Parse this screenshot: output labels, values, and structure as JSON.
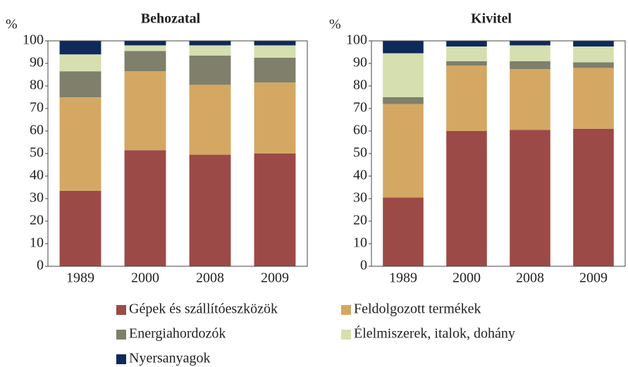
{
  "chart_data": {
    "type": "bar",
    "stacked": true,
    "ylabel": "%",
    "ylim": [
      0,
      100
    ],
    "yticks": [
      0,
      10,
      20,
      30,
      40,
      50,
      60,
      70,
      80,
      90,
      100
    ],
    "categories": [
      "1989",
      "2000",
      "2008",
      "2009"
    ],
    "panels": [
      {
        "title": "Behozatal"
      },
      {
        "title": "Kivitel"
      }
    ],
    "series": [
      {
        "name": "Gépek és szállítóeszközök",
        "color": "#9b4a47",
        "values": [
          [
            33.5,
            51.5,
            49.5,
            50
          ],
          [
            30.5,
            60,
            60.5,
            61
          ]
        ]
      },
      {
        "name": "Feldolgozott termékek",
        "color": "#d4a862",
        "values": [
          [
            41.5,
            35,
            31,
            31.5
          ],
          [
            41.5,
            29,
            27,
            27
          ]
        ]
      },
      {
        "name": "Energiahordozók",
        "color": "#7f7f6b",
        "values": [
          [
            11.5,
            9,
            13,
            11
          ],
          [
            3,
            2,
            3.5,
            2.5
          ]
        ]
      },
      {
        "name": "Élelmiszerek, italok, dohány",
        "color": "#d5dfb0",
        "values": [
          [
            7.5,
            2.5,
            4.5,
            5.5
          ],
          [
            19.5,
            6.5,
            7,
            7
          ]
        ]
      },
      {
        "name": "Nyersanyagok",
        "color": "#0f2a5a",
        "values": [
          [
            6,
            2,
            2,
            2
          ],
          [
            5.5,
            2.5,
            2,
            2.5
          ]
        ]
      }
    ]
  }
}
